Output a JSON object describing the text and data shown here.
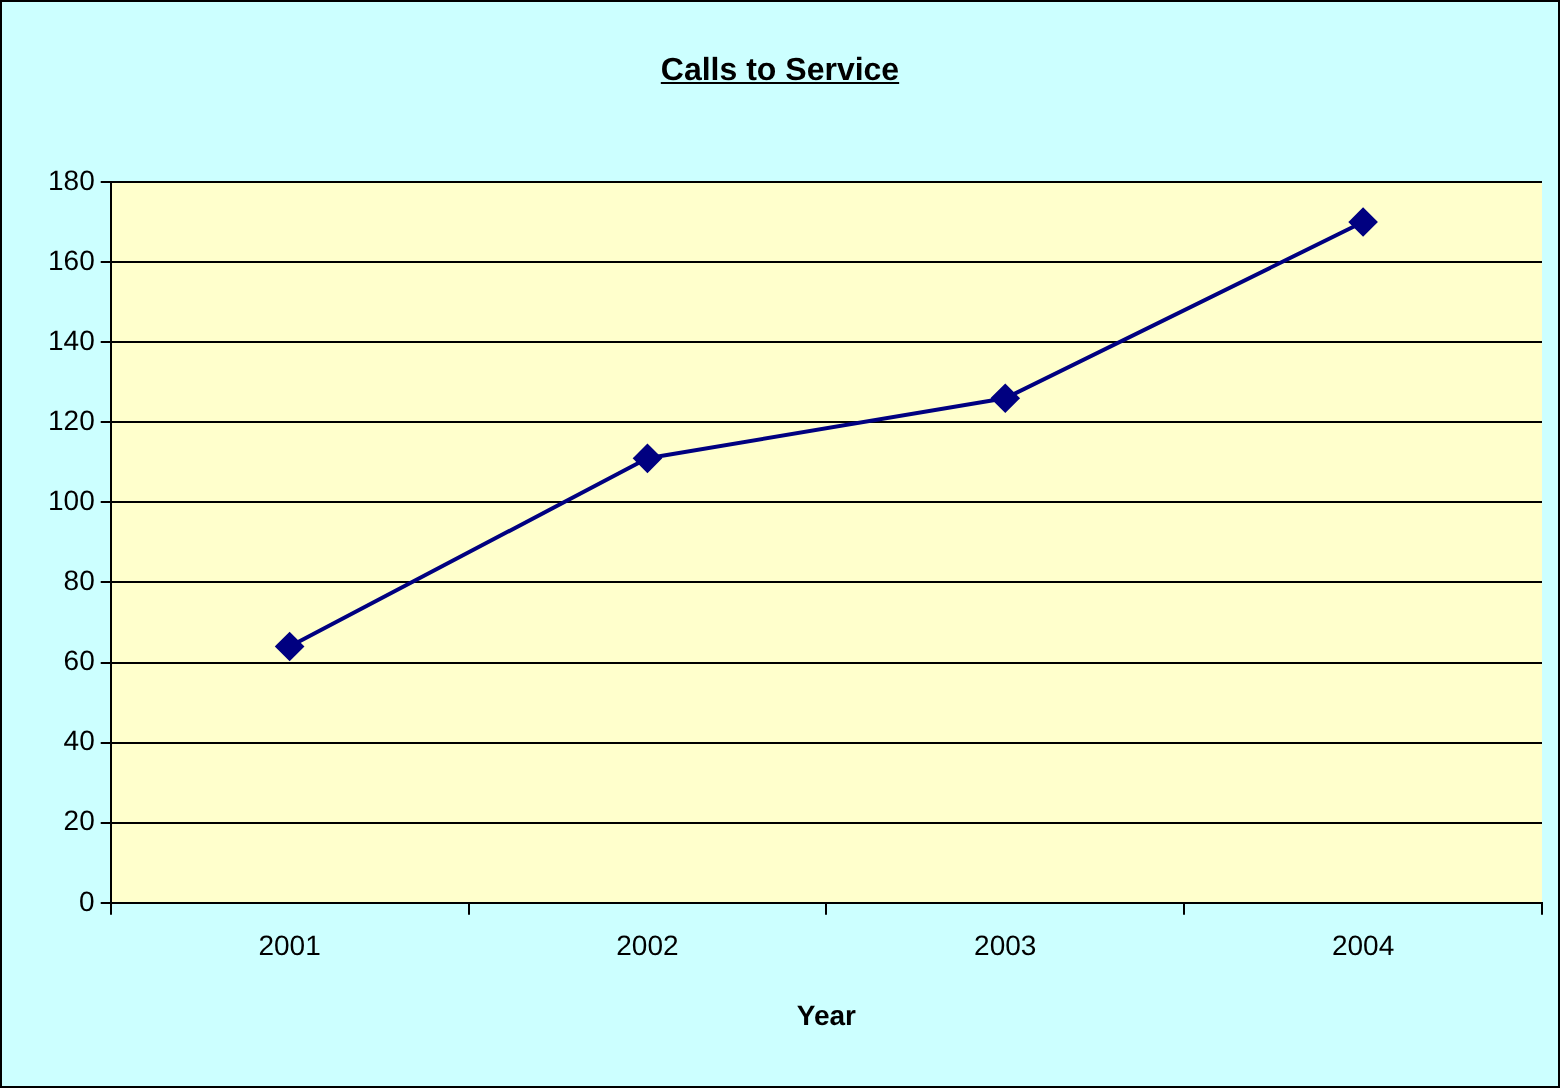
{
  "chart_data": {
    "type": "line",
    "title": "Calls to Service",
    "xlabel": "Year",
    "categories": [
      "2001",
      "2002",
      "2003",
      "2004"
    ],
    "series": [
      {
        "color": "#000080",
        "values": [
          64,
          111,
          126,
          170
        ]
      }
    ],
    "ylim": [
      0,
      180
    ],
    "yticks": [
      0,
      20,
      40,
      60,
      80,
      100,
      120,
      140,
      160,
      180
    ],
    "grid": "y",
    "marker": "diamond"
  }
}
